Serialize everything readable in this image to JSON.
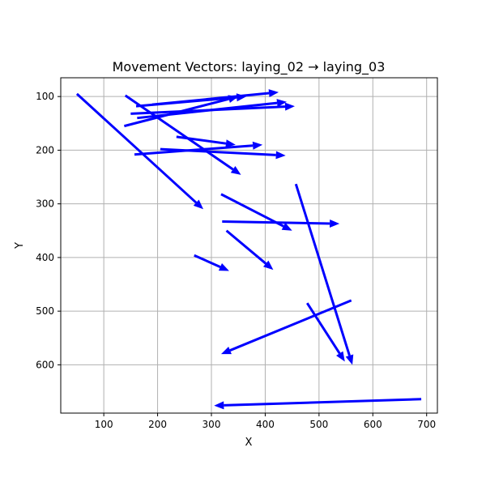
{
  "chart_data": {
    "type": "quiver",
    "title": "Movement Vectors: laying_02 → laying_03",
    "xlabel": "X",
    "ylabel": "Y",
    "xlim": [
      20,
      720
    ],
    "ylim": [
      690,
      65
    ],
    "y_inverted": true,
    "grid": true,
    "xticks": [
      100,
      200,
      300,
      400,
      500,
      600,
      700
    ],
    "yticks": [
      100,
      200,
      300,
      400,
      500,
      600
    ],
    "arrow_color": "#0000ff",
    "vectors": [
      {
        "x": 50,
        "y": 95,
        "x2": 285,
        "y2": 310
      },
      {
        "x": 140,
        "y": 98,
        "x2": 355,
        "y2": 246
      },
      {
        "x": 138,
        "y": 155,
        "x2": 350,
        "y2": 100
      },
      {
        "x": 160,
        "y": 118,
        "x2": 365,
        "y2": 100
      },
      {
        "x": 150,
        "y": 132,
        "x2": 455,
        "y2": 118
      },
      {
        "x": 162,
        "y": 140,
        "x2": 440,
        "y2": 110
      },
      {
        "x": 190,
        "y": 115,
        "x2": 425,
        "y2": 92
      },
      {
        "x": 157,
        "y": 208,
        "x2": 395,
        "y2": 190
      },
      {
        "x": 205,
        "y": 198,
        "x2": 438,
        "y2": 210
      },
      {
        "x": 235,
        "y": 175,
        "x2": 345,
        "y2": 190
      },
      {
        "x": 318,
        "y": 282,
        "x2": 450,
        "y2": 350
      },
      {
        "x": 320,
        "y": 333,
        "x2": 538,
        "y2": 337
      },
      {
        "x": 328,
        "y": 350,
        "x2": 415,
        "y2": 423
      },
      {
        "x": 268,
        "y": 396,
        "x2": 333,
        "y2": 425
      },
      {
        "x": 457,
        "y": 263,
        "x2": 562,
        "y2": 600
      },
      {
        "x": 478,
        "y": 485,
        "x2": 548,
        "y2": 594
      },
      {
        "x": 560,
        "y": 480,
        "x2": 318,
        "y2": 580
      },
      {
        "x": 690,
        "y": 664,
        "x2": 305,
        "y2": 676
      }
    ]
  }
}
